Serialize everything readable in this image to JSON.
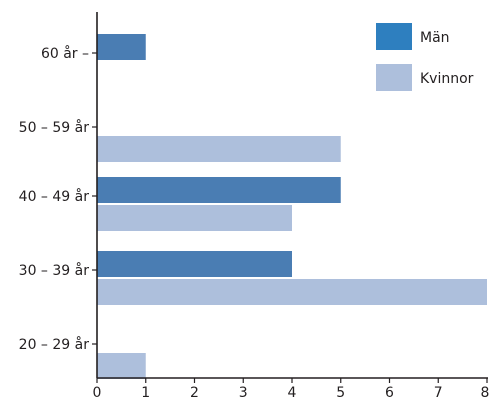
{
  "chart_data": {
    "type": "bar",
    "orientation": "horizontal",
    "categories": [
      "60 år –",
      "50 – 59 år",
      "40 – 49 år",
      "30 – 39 år",
      "20 – 29 år"
    ],
    "series": [
      {
        "name": "Män",
        "values": [
          1,
          0,
          5,
          4,
          0
        ],
        "color": "#4a7db3"
      },
      {
        "name": "Kvinnor",
        "values": [
          0,
          5,
          4,
          8,
          1
        ],
        "color": "#adbfdc"
      }
    ],
    "xlim": [
      0,
      8
    ],
    "xticks": [
      "0",
      "1",
      "2",
      "3",
      "4",
      "5",
      "6",
      "7",
      "8"
    ],
    "grid": false,
    "legend_position": "top-right"
  }
}
